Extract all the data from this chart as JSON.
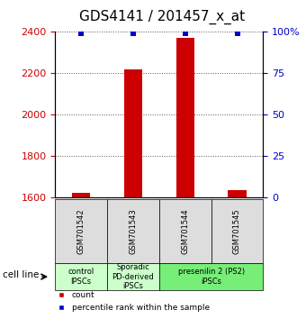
{
  "title": "GDS4141 / 201457_x_at",
  "samples": [
    "GSM701542",
    "GSM701543",
    "GSM701544",
    "GSM701545"
  ],
  "counts": [
    1623,
    2220,
    2370,
    1635
  ],
  "percentiles": [
    99,
    99,
    99,
    99
  ],
  "ylim_left": [
    1600,
    2400
  ],
  "ylim_right": [
    0,
    100
  ],
  "yticks_left": [
    1600,
    1800,
    2000,
    2200,
    2400
  ],
  "yticks_right": [
    0,
    25,
    50,
    75,
    100
  ],
  "ytick_labels_right": [
    "0",
    "25",
    "50",
    "75",
    "100%"
  ],
  "bar_color": "#cc0000",
  "dot_color": "#0000cc",
  "bar_width": 0.35,
  "group_box_color_1": "#dddddd",
  "xlabel_arrow": "cell line",
  "legend_count_label": "count",
  "legend_percentile_label": "percentile rank within the sample",
  "dotted_line_color": "#555555",
  "title_fontsize": 11,
  "tick_fontsize": 8
}
